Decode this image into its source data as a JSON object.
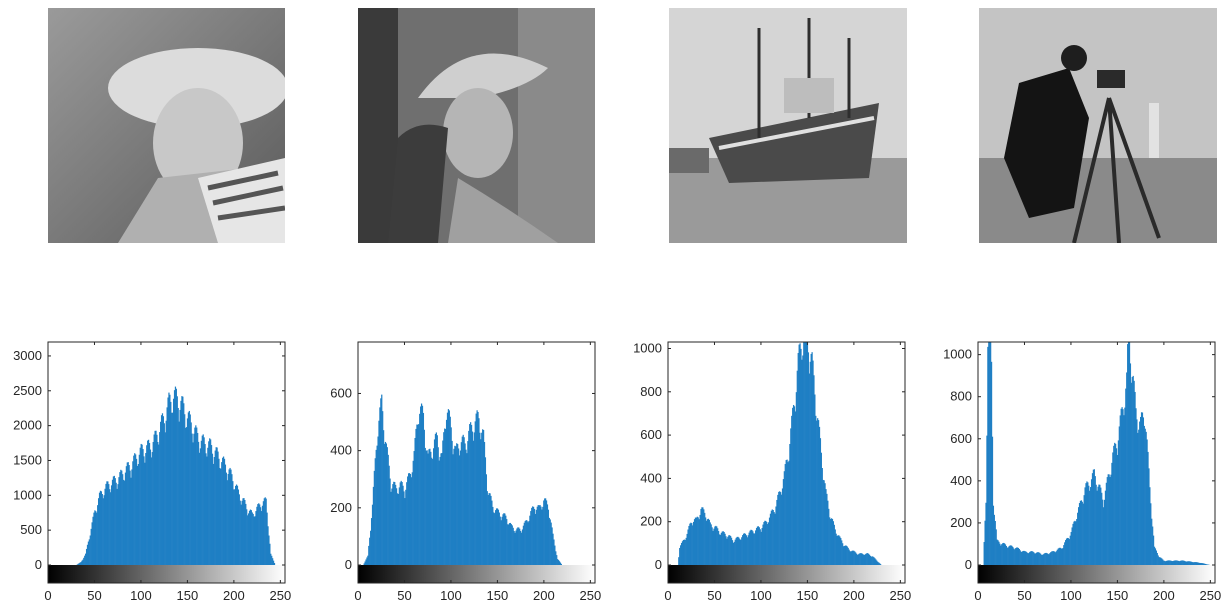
{
  "chart_data": [
    {
      "type": "bar",
      "xlim": [
        0,
        255
      ],
      "ylim": [
        0,
        3200
      ],
      "x_ticks": [
        0,
        50,
        100,
        150,
        200,
        250
      ],
      "y_ticks": [
        0,
        500,
        1000,
        1500,
        2000,
        2500,
        3000
      ],
      "bar_color": "#1f7fc4",
      "x": [
        0,
        10,
        20,
        30,
        35,
        40,
        45,
        50,
        55,
        60,
        65,
        70,
        75,
        80,
        85,
        90,
        95,
        100,
        105,
        110,
        115,
        120,
        125,
        130,
        135,
        140,
        145,
        150,
        155,
        160,
        165,
        170,
        175,
        180,
        185,
        190,
        195,
        200,
        205,
        210,
        215,
        220,
        225,
        230,
        235,
        240,
        245,
        255
      ],
      "values": [
        0,
        0,
        0,
        0,
        40,
        150,
        450,
        750,
        950,
        1050,
        1120,
        1160,
        1200,
        1270,
        1340,
        1400,
        1500,
        1580,
        1620,
        1650,
        1750,
        1900,
        2050,
        2250,
        2350,
        2300,
        2200,
        2050,
        1950,
        1800,
        1720,
        1680,
        1650,
        1570,
        1480,
        1400,
        1300,
        1170,
        1000,
        900,
        780,
        700,
        780,
        860,
        890,
        150,
        0,
        0
      ]
    },
    {
      "type": "bar",
      "xlim": [
        0,
        255
      ],
      "ylim": [
        0,
        780
      ],
      "x_ticks": [
        0,
        50,
        100,
        150,
        200,
        250
      ],
      "y_ticks": [
        0,
        200,
        400,
        600
      ],
      "bar_color": "#1f7fc4",
      "x": [
        0,
        5,
        10,
        15,
        20,
        25,
        30,
        35,
        40,
        45,
        50,
        55,
        60,
        65,
        70,
        75,
        80,
        85,
        90,
        95,
        100,
        105,
        110,
        115,
        120,
        125,
        130,
        135,
        140,
        145,
        150,
        155,
        160,
        165,
        170,
        175,
        180,
        185,
        190,
        195,
        200,
        205,
        210,
        215,
        220,
        225,
        230,
        255
      ],
      "values": [
        0,
        0,
        30,
        200,
        450,
        550,
        400,
        280,
        260,
        270,
        260,
        300,
        370,
        540,
        500,
        360,
        400,
        430,
        360,
        540,
        460,
        380,
        420,
        410,
        450,
        480,
        500,
        430,
        250,
        200,
        180,
        170,
        160,
        130,
        120,
        120,
        140,
        170,
        200,
        190,
        220,
        200,
        100,
        20,
        0,
        0,
        0,
        0
      ]
    },
    {
      "type": "bar",
      "xlim": [
        0,
        255
      ],
      "ylim": [
        0,
        1030
      ],
      "x_ticks": [
        0,
        50,
        100,
        150,
        200,
        250
      ],
      "y_ticks": [
        0,
        200,
        400,
        600,
        800,
        1000
      ],
      "bar_color": "#1f7fc4",
      "x": [
        0,
        10,
        12,
        15,
        20,
        25,
        30,
        35,
        40,
        45,
        50,
        55,
        60,
        65,
        70,
        75,
        80,
        85,
        90,
        95,
        100,
        105,
        110,
        115,
        120,
        125,
        130,
        135,
        140,
        145,
        150,
        155,
        160,
        165,
        170,
        175,
        180,
        185,
        190,
        195,
        200,
        205,
        210,
        215,
        220,
        225,
        230,
        255
      ],
      "values": [
        0,
        0,
        80,
        100,
        140,
        200,
        200,
        250,
        230,
        180,
        170,
        150,
        140,
        130,
        110,
        120,
        130,
        140,
        150,
        160,
        170,
        190,
        220,
        260,
        320,
        400,
        520,
        700,
        900,
        1030,
        1030,
        900,
        700,
        500,
        320,
        220,
        160,
        120,
        90,
        70,
        60,
        50,
        50,
        50,
        40,
        20,
        0,
        0
      ]
    },
    {
      "type": "bar",
      "xlim": [
        0,
        255
      ],
      "ylim": [
        0,
        1060
      ],
      "x_ticks": [
        0,
        50,
        100,
        150,
        200,
        250
      ],
      "y_ticks": [
        0,
        200,
        400,
        600,
        800,
        1000
      ],
      "bar_color": "#1f7fc4",
      "x": [
        0,
        5,
        8,
        10,
        12,
        14,
        16,
        20,
        30,
        40,
        50,
        60,
        70,
        80,
        90,
        100,
        105,
        110,
        115,
        120,
        125,
        130,
        135,
        140,
        145,
        150,
        155,
        160,
        162,
        165,
        168,
        170,
        175,
        180,
        185,
        190,
        195,
        200,
        210,
        220,
        230,
        240,
        250,
        255
      ],
      "values": [
        0,
        0,
        300,
        1060,
        1060,
        900,
        300,
        110,
        90,
        80,
        60,
        60,
        50,
        60,
        80,
        150,
        220,
        280,
        350,
        380,
        420,
        360,
        300,
        400,
        500,
        580,
        700,
        850,
        1060,
        950,
        800,
        700,
        650,
        700,
        350,
        80,
        40,
        20,
        20,
        20,
        15,
        10,
        0,
        0
      ]
    }
  ]
}
